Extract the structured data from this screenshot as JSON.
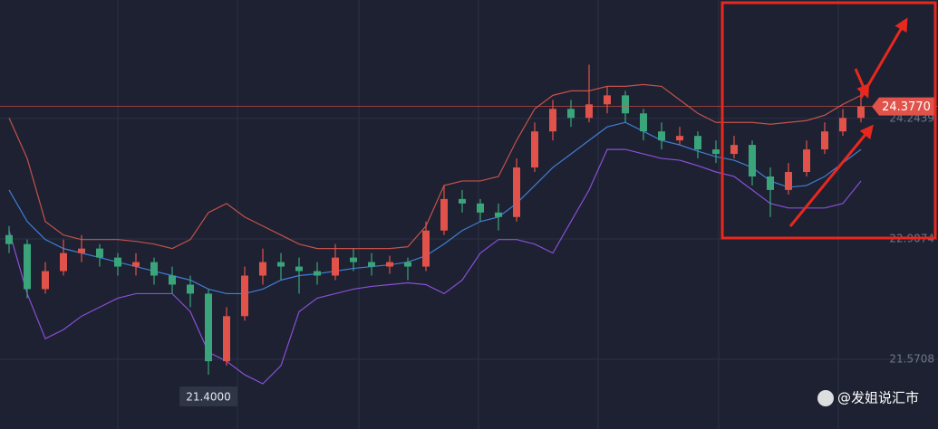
{
  "chart_data": {
    "type": "candlestick",
    "ylim": [
      20.798,
      25.558
    ],
    "yticks": [
      21.5708,
      22.9074,
      24.2439
    ],
    "grid": true,
    "up_color": "#e0524a",
    "down_color": "#3aa57a",
    "open": [
      22.95,
      22.85,
      22.35,
      22.55,
      22.75,
      22.8,
      22.7,
      22.6,
      22.65,
      22.5,
      22.4,
      22.3,
      21.55,
      22.05,
      22.5,
      22.65,
      22.6,
      22.55,
      22.5,
      22.7,
      22.65,
      22.6,
      22.65,
      22.6,
      23.0,
      23.35,
      23.3,
      23.2,
      23.15,
      23.7,
      24.1,
      24.35,
      24.25,
      24.4,
      24.5,
      24.3,
      24.1,
      24.0,
      24.05,
      23.9,
      23.85,
      23.95,
      23.6,
      23.45,
      23.65,
      23.9,
      24.1,
      24.25
    ],
    "high": [
      23.05,
      22.9,
      22.65,
      22.9,
      22.95,
      22.85,
      22.75,
      22.75,
      22.7,
      22.6,
      22.5,
      22.35,
      22.15,
      22.6,
      22.8,
      22.75,
      22.7,
      22.65,
      22.85,
      22.8,
      22.75,
      22.72,
      22.7,
      23.1,
      23.5,
      23.45,
      23.35,
      23.3,
      23.8,
      24.2,
      24.45,
      24.45,
      24.84,
      24.6,
      24.55,
      24.35,
      24.2,
      24.15,
      24.1,
      24.0,
      24.05,
      24.0,
      23.7,
      23.75,
      24.0,
      24.2,
      24.35,
      24.55
    ],
    "low": [
      22.75,
      22.25,
      22.3,
      22.5,
      22.65,
      22.6,
      22.5,
      22.5,
      22.4,
      22.3,
      22.15,
      21.4,
      21.5,
      22.0,
      22.4,
      22.45,
      22.3,
      22.4,
      22.45,
      22.55,
      22.5,
      22.52,
      22.45,
      22.55,
      22.95,
      23.2,
      23.1,
      23.0,
      23.1,
      23.65,
      24.0,
      24.15,
      24.2,
      24.3,
      24.2,
      24.0,
      23.9,
      23.95,
      23.8,
      23.75,
      23.8,
      23.5,
      23.15,
      23.4,
      23.6,
      23.85,
      24.05,
      24.2
    ],
    "close": [
      22.85,
      22.35,
      22.55,
      22.75,
      22.8,
      22.7,
      22.6,
      22.65,
      22.5,
      22.4,
      22.3,
      21.55,
      22.05,
      22.5,
      22.65,
      22.6,
      22.55,
      22.5,
      22.7,
      22.65,
      22.6,
      22.65,
      22.6,
      23.0,
      23.35,
      23.3,
      23.2,
      23.15,
      23.7,
      24.1,
      24.35,
      24.25,
      24.4,
      24.5,
      24.3,
      24.1,
      24.0,
      24.05,
      23.9,
      23.85,
      23.95,
      23.6,
      23.45,
      23.65,
      23.9,
      24.1,
      24.25,
      24.377
    ],
    "overlays": [
      {
        "color": "#c4524a",
        "values": [
          24.25,
          23.8,
          23.1,
          22.95,
          22.9,
          22.9,
          22.9,
          22.88,
          22.85,
          22.8,
          22.9,
          23.2,
          23.3,
          23.15,
          23.05,
          22.95,
          22.85,
          22.8,
          22.8,
          22.8,
          22.8,
          22.8,
          22.82,
          23.05,
          23.5,
          23.55,
          23.55,
          23.6,
          24.0,
          24.35,
          24.5,
          24.55,
          24.55,
          24.6,
          24.6,
          24.62,
          24.6,
          24.45,
          24.3,
          24.2,
          24.2,
          24.2,
          24.18,
          24.2,
          24.22,
          24.28,
          24.4,
          24.5
        ]
      },
      {
        "color": "#3f7fd6",
        "values": [
          23.45,
          23.1,
          22.9,
          22.8,
          22.75,
          22.7,
          22.65,
          22.6,
          22.55,
          22.5,
          22.45,
          22.35,
          22.3,
          22.3,
          22.35,
          22.45,
          22.5,
          22.52,
          22.55,
          22.58,
          22.6,
          22.62,
          22.65,
          22.72,
          22.85,
          23.0,
          23.1,
          23.15,
          23.3,
          23.5,
          23.7,
          23.85,
          24.0,
          24.15,
          24.2,
          24.1,
          24.0,
          23.95,
          23.88,
          23.82,
          23.78,
          23.7,
          23.55,
          23.48,
          23.5,
          23.6,
          23.75,
          23.9
        ]
      },
      {
        "color": "#8a4fd8",
        "values": [
          23.0,
          22.3,
          21.8,
          21.9,
          22.05,
          22.15,
          22.25,
          22.3,
          22.3,
          22.3,
          22.1,
          21.65,
          21.55,
          21.4,
          21.3,
          21.5,
          22.1,
          22.25,
          22.3,
          22.35,
          22.38,
          22.4,
          22.42,
          22.4,
          22.3,
          22.45,
          22.75,
          22.9,
          22.9,
          22.85,
          22.75,
          23.1,
          23.45,
          23.9,
          23.9,
          23.85,
          23.8,
          23.78,
          23.72,
          23.65,
          23.6,
          23.45,
          23.3,
          23.25,
          23.25,
          23.25,
          23.3,
          23.55
        ]
      }
    ],
    "last_price_label": "24.3770",
    "low_label": "21.4000",
    "watermark": "@发姐说汇市"
  }
}
